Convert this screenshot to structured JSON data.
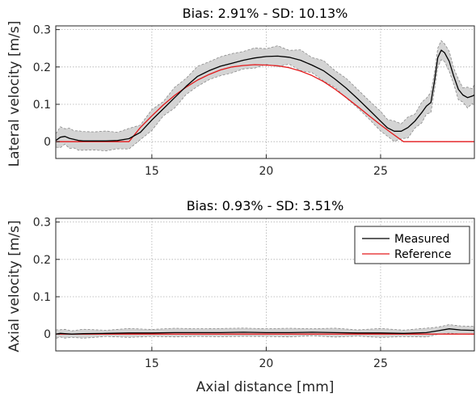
{
  "chart_data": [
    {
      "type": "line",
      "title": "Bias: 2.91% - SD: 10.13%",
      "xlabel": "",
      "ylabel": "Lateral velocity [m/s]",
      "xlim": [
        10.8,
        29.1
      ],
      "ylim": [
        -0.045,
        0.31
      ],
      "xticks": [
        15,
        20,
        25
      ],
      "yticks": [
        0,
        0.1,
        0.2,
        0.3
      ],
      "grid": true,
      "legend": false,
      "series": [
        {
          "name": "Measured",
          "color": "#000000",
          "x": [
            10.8,
            11.0,
            11.2,
            11.4,
            11.6,
            11.8,
            12.0,
            12.5,
            13.0,
            13.5,
            14.0,
            14.5,
            15.0,
            15.5,
            16.0,
            16.5,
            17.0,
            17.5,
            18.0,
            18.5,
            19.0,
            19.5,
            20.0,
            20.5,
            21.0,
            21.5,
            22.0,
            22.5,
            23.0,
            23.5,
            24.0,
            24.5,
            25.0,
            25.3,
            25.6,
            25.9,
            26.2,
            26.5,
            26.8,
            27.0,
            27.2,
            27.35,
            27.5,
            27.65,
            27.8,
            28.0,
            28.2,
            28.4,
            28.6,
            28.8,
            29.0,
            29.1
          ],
          "y": [
            0.003,
            0.012,
            0.014,
            0.009,
            0.006,
            0.003,
            0.002,
            0.002,
            0.002,
            0.003,
            0.008,
            0.025,
            0.058,
            0.088,
            0.118,
            0.148,
            0.175,
            0.19,
            0.202,
            0.21,
            0.218,
            0.224,
            0.228,
            0.229,
            0.226,
            0.218,
            0.205,
            0.19,
            0.168,
            0.143,
            0.115,
            0.085,
            0.055,
            0.037,
            0.028,
            0.028,
            0.038,
            0.055,
            0.078,
            0.095,
            0.105,
            0.16,
            0.225,
            0.245,
            0.238,
            0.215,
            0.175,
            0.14,
            0.125,
            0.118,
            0.122,
            0.125
          ]
        },
        {
          "name": "Reference",
          "color": "#e41a1c",
          "x": [
            10.8,
            14.0,
            14.5,
            15.0,
            15.5,
            16.0,
            16.5,
            17.0,
            17.5,
            18.0,
            18.5,
            19.0,
            19.5,
            20.0,
            20.5,
            21.0,
            21.5,
            22.0,
            22.5,
            23.0,
            23.5,
            24.0,
            24.5,
            25.0,
            25.5,
            26.0,
            29.1
          ],
          "y": [
            0,
            0,
            0.038,
            0.069,
            0.098,
            0.124,
            0.146,
            0.165,
            0.18,
            0.192,
            0.2,
            0.204,
            0.206,
            0.205,
            0.203,
            0.198,
            0.189,
            0.177,
            0.161,
            0.141,
            0.118,
            0.094,
            0.069,
            0.045,
            0.022,
            0,
            0
          ]
        }
      ]
    },
    {
      "type": "line",
      "title": "Bias: 0.93% - SD: 3.51%",
      "xlabel": "Axial distance [mm]",
      "ylabel": "Axial velocity [m/s]",
      "xlim": [
        10.8,
        29.1
      ],
      "ylim": [
        -0.045,
        0.31
      ],
      "xticks": [
        15,
        20,
        25
      ],
      "yticks": [
        0,
        0.1,
        0.2,
        0.3
      ],
      "grid": true,
      "legend": true,
      "legend_position": "top-right",
      "series": [
        {
          "name": "Measured",
          "color": "#000000",
          "x": [
            10.8,
            11.0,
            11.2,
            11.5,
            12.0,
            13.0,
            14.0,
            15.0,
            16.0,
            17.0,
            18.0,
            19.0,
            20.0,
            21.0,
            22.0,
            23.0,
            24.0,
            25.0,
            26.0,
            27.0,
            27.5,
            28.0,
            28.5,
            29.1
          ],
          "y": [
            0.0,
            0.002,
            0.001,
            0.0,
            0.001,
            0.002,
            0.003,
            0.003,
            0.004,
            0.004,
            0.004,
            0.005,
            0.004,
            0.004,
            0.005,
            0.004,
            0.003,
            0.003,
            0.002,
            0.004,
            0.009,
            0.014,
            0.011,
            0.01
          ]
        },
        {
          "name": "Reference",
          "color": "#e41a1c",
          "x": [
            10.8,
            29.1
          ],
          "y": [
            0,
            0
          ]
        }
      ]
    }
  ]
}
